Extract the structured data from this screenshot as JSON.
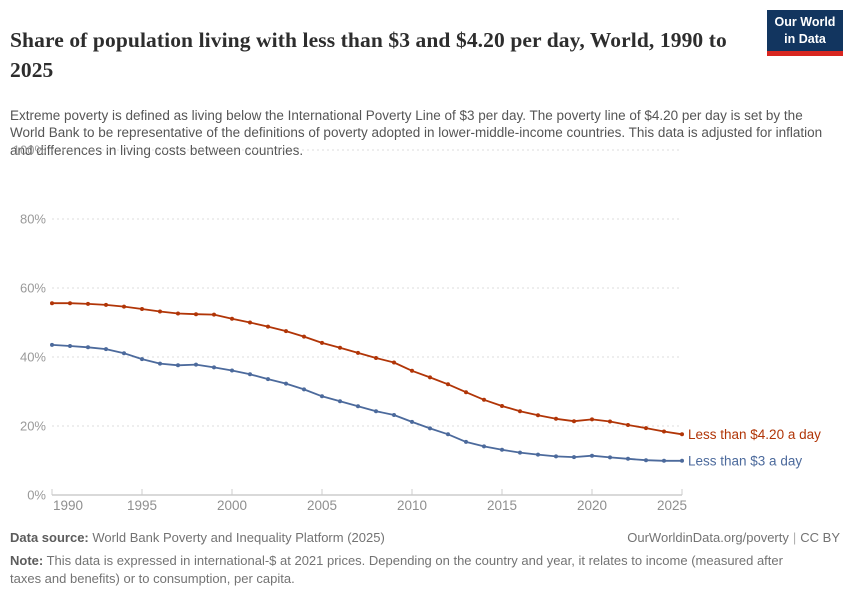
{
  "header": {
    "title": "Share of population living with less than $3 and $4.20 per day, World, 1990 to 2025",
    "subtitle": "Extreme poverty is defined as living below the International Poverty Line of $3 per day. The poverty line of $4.20 per day is set by the World Bank to be representative of the definitions of poverty adopted in lower-middle-income countries. This data is adjusted for inflation and differences in living costs between countries.",
    "logo": {
      "line1": "Our World",
      "line2": "in Data",
      "bg_color": "#12355f",
      "accent_color": "#d82620"
    }
  },
  "chart_data": {
    "type": "line",
    "title": "Share of population living with less than $3 and $4.20 per day, World, 1990 to 2025",
    "xlabel": "",
    "ylabel": "",
    "x": [
      1990,
      1991,
      1992,
      1993,
      1994,
      1995,
      1996,
      1997,
      1998,
      1999,
      2000,
      2001,
      2002,
      2003,
      2004,
      2005,
      2006,
      2007,
      2008,
      2009,
      2010,
      2011,
      2012,
      2013,
      2014,
      2015,
      2016,
      2017,
      2018,
      2019,
      2020,
      2021,
      2022,
      2023,
      2024,
      2025
    ],
    "series": [
      {
        "name": "Less than $4.20 a day",
        "color": "#B13507",
        "values": [
          55.6,
          55.6,
          55.4,
          55.1,
          54.6,
          53.9,
          53.2,
          52.6,
          52.4,
          52.3,
          51.1,
          50.0,
          48.8,
          47.5,
          45.9,
          44.1,
          42.7,
          41.2,
          39.7,
          38.4,
          36.0,
          34.1,
          32.1,
          29.8,
          27.6,
          25.8,
          24.3,
          23.1,
          22.1,
          21.4,
          21.9,
          21.3,
          20.3,
          19.4,
          18.4,
          17.6
        ]
      },
      {
        "name": "Less than $3 a day",
        "color": "#4C6A9C",
        "values": [
          43.5,
          43.2,
          42.8,
          42.3,
          41.1,
          39.4,
          38.1,
          37.6,
          37.8,
          37.0,
          36.1,
          35.0,
          33.6,
          32.3,
          30.6,
          28.6,
          27.2,
          25.7,
          24.3,
          23.2,
          21.2,
          19.3,
          17.6,
          15.4,
          14.1,
          13.1,
          12.3,
          11.7,
          11.2,
          11.0,
          11.4,
          10.9,
          10.5,
          10.1,
          9.9,
          9.9
        ]
      }
    ],
    "ylim": [
      0,
      100
    ],
    "yticks": [
      0,
      20,
      40,
      60,
      80,
      100
    ],
    "ytick_suffix": "%",
    "xticks": [
      1990,
      1995,
      2000,
      2005,
      2010,
      2015,
      2020,
      2025
    ],
    "grid": "horizontal-dashed",
    "legend_position": "right-of-line-ends",
    "axis_color": "#b3b3b3",
    "grid_color": "#dddddd",
    "tick_label_color": "#8f8f8f"
  },
  "footer": {
    "datasource_label": "Data source:",
    "datasource_value": "World Bank Poverty and Inequality Platform (2025)",
    "link": "OurWorldinData.org/poverty",
    "license": "CC BY",
    "note_label": "Note:",
    "note_text": "This data is expressed in international-$ at 2021 prices. Depending on the country and year, it relates to income (measured after taxes and benefits) or to consumption, per capita."
  }
}
